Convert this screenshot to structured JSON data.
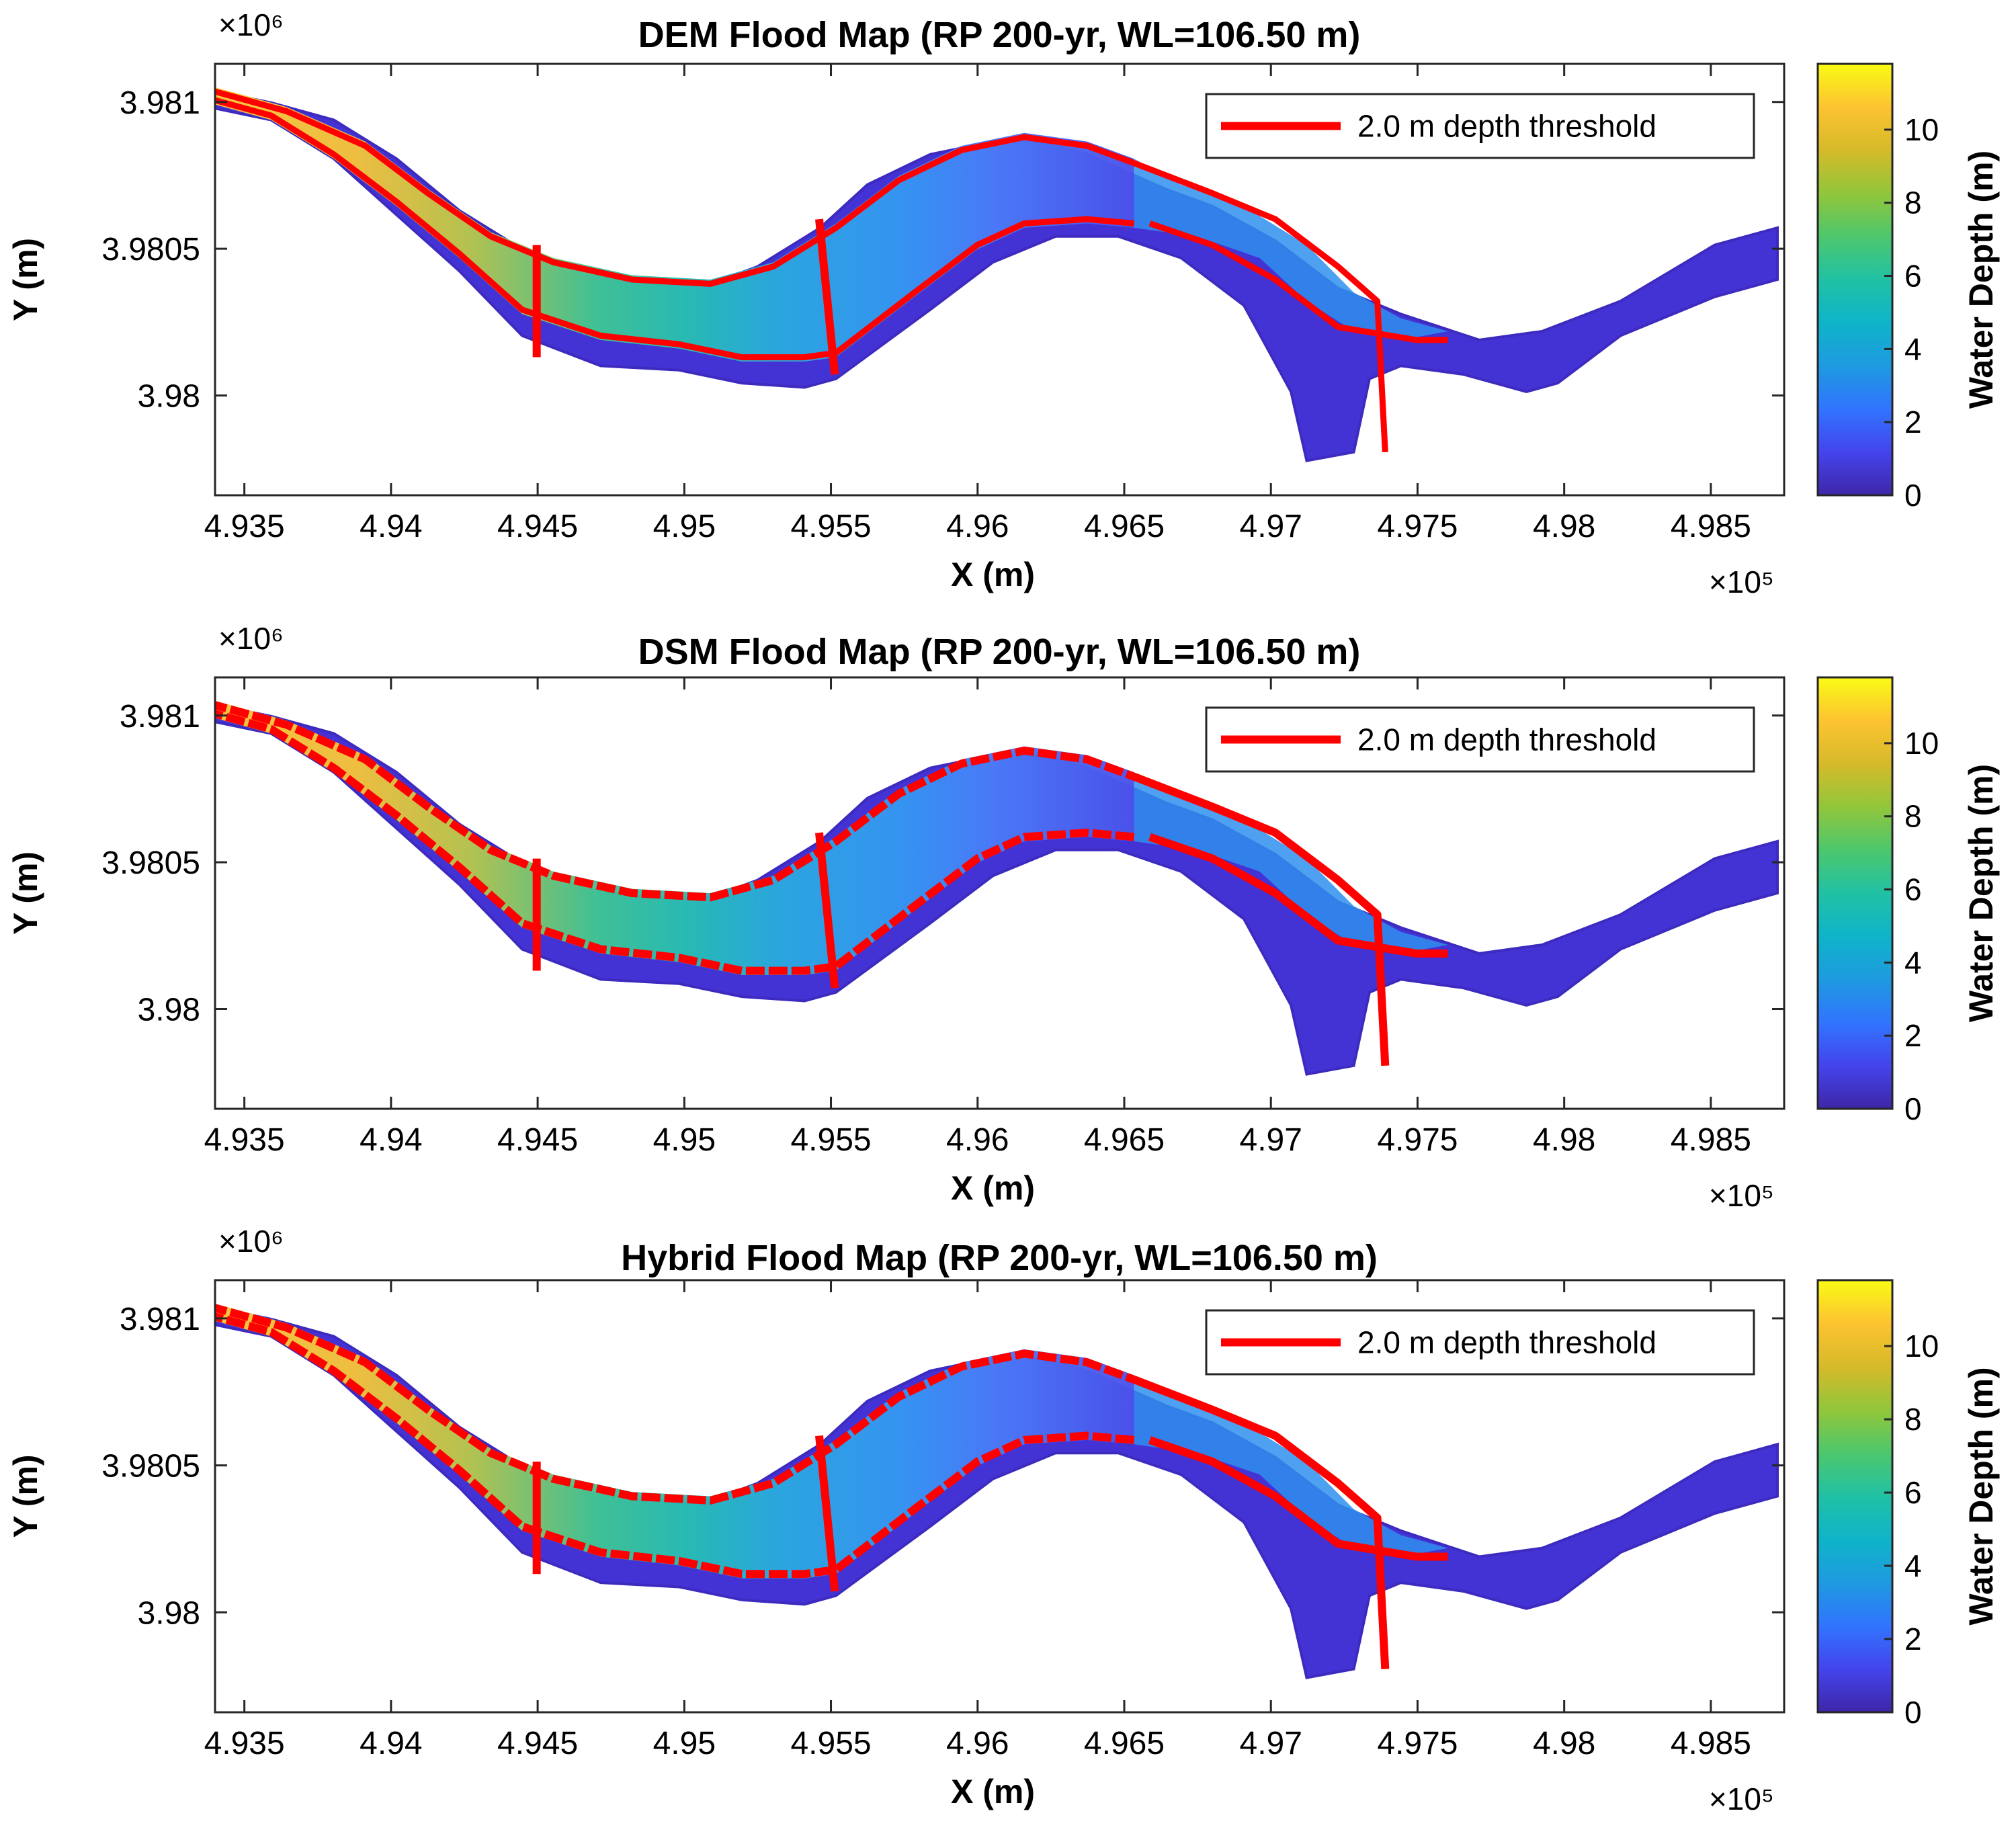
{
  "figure": {
    "layout": "3 stacked panels"
  },
  "shared": {
    "x_axis_label": "X (m)",
    "y_axis_label": "Y (m)",
    "x_exponent": "×10⁵",
    "y_exponent": "×10⁶",
    "colorbar_label": "Water Depth (m)",
    "legend_label": "2.0 m depth threshold",
    "legend_color": "#ff0000"
  },
  "chart_data": [
    {
      "type": "heatmap",
      "title": "DEM Flood Map (RP 200-yr, WL=106.50 m)",
      "xlabel": "X (m)",
      "ylabel": "Y (m)",
      "x_ticks": [
        "4.935",
        "4.94",
        "4.945",
        "4.95",
        "4.955",
        "4.96",
        "4.965",
        "4.97",
        "4.975",
        "4.98",
        "4.985"
      ],
      "x_tick_values": [
        4.935,
        4.94,
        4.945,
        4.95,
        4.955,
        4.96,
        4.965,
        4.97,
        4.975,
        4.98,
        4.985
      ],
      "xlim": [
        4.934,
        4.9875
      ],
      "y_ticks": [
        "3.981",
        "3.9805",
        "3.98"
      ],
      "y_tick_values": [
        3.981,
        3.9805,
        3.98
      ],
      "ylim": [
        3.97966,
        3.98113
      ],
      "x_multiplier": "×10⁵",
      "y_multiplier": "×10⁶",
      "colorbar": {
        "label": "Water Depth (m)",
        "ticks": [
          "0",
          "2",
          "4",
          "6",
          "8",
          "10"
        ],
        "tick_values": [
          0,
          2,
          4,
          6,
          8,
          10
        ],
        "range": [
          0,
          11.8
        ]
      },
      "legend": [
        {
          "label": "2.0 m depth threshold",
          "color": "#ff0000",
          "location": "top-right"
        }
      ]
    },
    {
      "type": "heatmap",
      "title": "DSM Flood Map (RP 200-yr, WL=106.50 m)",
      "xlabel": "X (m)",
      "ylabel": "Y (m)",
      "x_ticks": [
        "4.935",
        "4.94",
        "4.945",
        "4.95",
        "4.955",
        "4.96",
        "4.965",
        "4.97",
        "4.975",
        "4.98",
        "4.985"
      ],
      "x_tick_values": [
        4.935,
        4.94,
        4.945,
        4.95,
        4.955,
        4.96,
        4.965,
        4.97,
        4.975,
        4.98,
        4.985
      ],
      "xlim": [
        4.934,
        4.9875
      ],
      "y_ticks": [
        "3.981",
        "3.9805",
        "3.98"
      ],
      "y_tick_values": [
        3.981,
        3.9805,
        3.98
      ],
      "ylim": [
        3.97966,
        3.98113
      ],
      "x_multiplier": "×10⁵",
      "y_multiplier": "×10⁶",
      "colorbar": {
        "label": "Water Depth (m)",
        "ticks": [
          "0",
          "2",
          "4",
          "6",
          "8",
          "10"
        ],
        "tick_values": [
          0,
          2,
          4,
          6,
          8,
          10
        ],
        "range": [
          0,
          11.8
        ]
      },
      "legend": [
        {
          "label": "2.0 m depth threshold",
          "color": "#ff0000",
          "location": "top-right"
        }
      ]
    },
    {
      "type": "heatmap",
      "title": "Hybrid Flood Map (RP 200-yr, WL=106.50 m)",
      "xlabel": "X (m)",
      "ylabel": "Y (m)",
      "x_ticks": [
        "4.935",
        "4.94",
        "4.945",
        "4.95",
        "4.955",
        "4.96",
        "4.965",
        "4.97",
        "4.975",
        "4.98",
        "4.985"
      ],
      "x_tick_values": [
        4.935,
        4.94,
        4.945,
        4.95,
        4.955,
        4.96,
        4.965,
        4.97,
        4.975,
        4.98,
        4.985
      ],
      "xlim": [
        4.934,
        4.9875
      ],
      "y_ticks": [
        "3.981",
        "3.9805",
        "3.98"
      ],
      "y_tick_values": [
        3.981,
        3.9805,
        3.98
      ],
      "ylim": [
        3.97966,
        3.98113
      ],
      "x_multiplier": "×10⁵",
      "y_multiplier": "×10⁶",
      "colorbar": {
        "label": "Water Depth (m)",
        "ticks": [
          "0",
          "2",
          "4",
          "6",
          "8",
          "10"
        ],
        "tick_values": [
          0,
          2,
          4,
          6,
          8,
          10
        ],
        "range": [
          0,
          11.8
        ]
      },
      "legend": [
        {
          "label": "2.0 m depth threshold",
          "color": "#ff0000",
          "location": "top-right"
        }
      ]
    }
  ]
}
